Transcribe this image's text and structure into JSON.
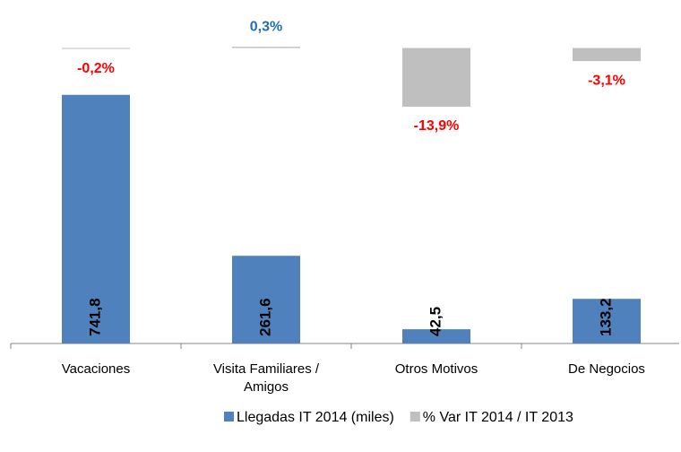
{
  "chart_data": {
    "type": "bar",
    "categories": [
      "Vacaciones",
      "Visita Familiares / Amigos",
      "Otros Motivos",
      "De Negocios"
    ],
    "series": [
      {
        "name": "Llegadas IT 2014 (miles)",
        "color": "#4f81bd",
        "values": [
          741.8,
          261.6,
          42.5,
          133.2
        ],
        "value_labels": [
          "741,8",
          "261,6",
          "42,5",
          "133,2"
        ]
      },
      {
        "name": "% Var IT 2014 / IT 2013",
        "color": "#bfbfbf",
        "axis": "y2",
        "values": [
          -0.2,
          0.3,
          -13.9,
          -3.1
        ],
        "value_labels": [
          "-0,2%",
          "0,3%",
          "-13,9%",
          "-3,1%"
        ]
      }
    ],
    "ylim": [
      0,
      800
    ],
    "y2lim": [
      -70,
      5
    ],
    "negative_label_color": "#ff0000",
    "positive_label_color": "#1f6fb2",
    "legend": "bottom"
  }
}
